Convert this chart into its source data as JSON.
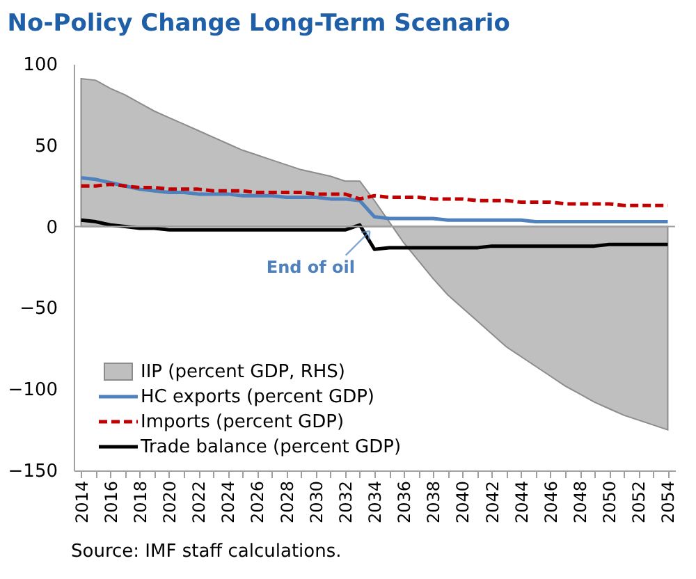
{
  "chart_data": {
    "type": "line",
    "title": "No-Policy Change Long-Term Scenario",
    "categories": [
      "2014",
      null,
      "2016",
      null,
      "2018",
      null,
      "2020",
      null,
      "2022",
      null,
      "2024",
      null,
      "2026",
      null,
      "2028",
      null,
      "2030",
      null,
      "2032",
      null,
      "2034",
      null,
      "2036",
      null,
      "2038",
      null,
      "2040",
      null,
      "2042",
      null,
      "2044",
      null,
      "2046",
      null,
      "2048",
      null,
      "2050",
      null,
      "2052",
      null,
      "2054"
    ],
    "series": [
      {
        "name": "IIP (percent GDP, RHS)",
        "type": "area",
        "color": "#bfbfbf",
        "values": [
          91,
          90,
          85,
          81,
          76,
          71,
          67,
          63,
          59,
          55,
          51,
          47,
          44,
          41,
          38,
          35,
          33,
          31,
          28,
          28,
          16,
          3,
          -10,
          -21,
          -32,
          -42,
          -50,
          -58,
          -66,
          -74,
          -80,
          -86,
          -92,
          -98,
          -103,
          -108,
          -112,
          -116,
          -119,
          -122,
          -125
        ]
      },
      {
        "name": "HC exports (percent GDP)",
        "color": "#4f81bd",
        "line_style": "solid",
        "values": [
          30,
          29,
          27,
          25,
          23,
          22,
          21,
          21,
          20,
          20,
          20,
          19,
          19,
          19,
          18,
          18,
          18,
          17,
          17,
          16,
          6,
          5,
          5,
          5,
          5,
          4,
          4,
          4,
          4,
          4,
          4,
          3,
          3,
          3,
          3,
          3,
          3,
          3,
          3,
          3,
          3
        ]
      },
      {
        "name": "Imports (percent GDP)",
        "color": "#c00000",
        "line_style": "dashed",
        "values": [
          25,
          25,
          26,
          25,
          24,
          24,
          23,
          23,
          23,
          22,
          22,
          22,
          21,
          21,
          21,
          21,
          20,
          20,
          20,
          17,
          19,
          18,
          18,
          18,
          17,
          17,
          17,
          16,
          16,
          16,
          15,
          15,
          15,
          14,
          14,
          14,
          14,
          13,
          13,
          13,
          13
        ]
      },
      {
        "name": "Trade balance (percent GDP)",
        "color": "#000000",
        "line_style": "solid",
        "values": [
          4,
          3,
          1,
          0,
          -1,
          -1,
          -2,
          -2,
          -2,
          -2,
          -2,
          -2,
          -2,
          -2,
          -2,
          -2,
          -2,
          -2,
          -2,
          1,
          -14,
          -13,
          -13,
          -13,
          -13,
          -13,
          -13,
          -13,
          -12,
          -12,
          -12,
          -12,
          -12,
          -12,
          -12,
          -12,
          -11,
          -11,
          -11,
          -11,
          -11
        ]
      }
    ],
    "ylim": [
      -150,
      100
    ],
    "yticks": [
      -150,
      -100,
      -50,
      0,
      50,
      100
    ],
    "grid": false,
    "ref_lines": [
      {
        "axis": "y",
        "value": 0,
        "color": "#a0a0a0"
      }
    ],
    "legend": "bottom left",
    "marker": "none",
    "annotations": [
      {
        "text": "End of oil",
        "x": "2034",
        "y": 0
      },
      "Source: IMF staff calculations."
    ]
  }
}
